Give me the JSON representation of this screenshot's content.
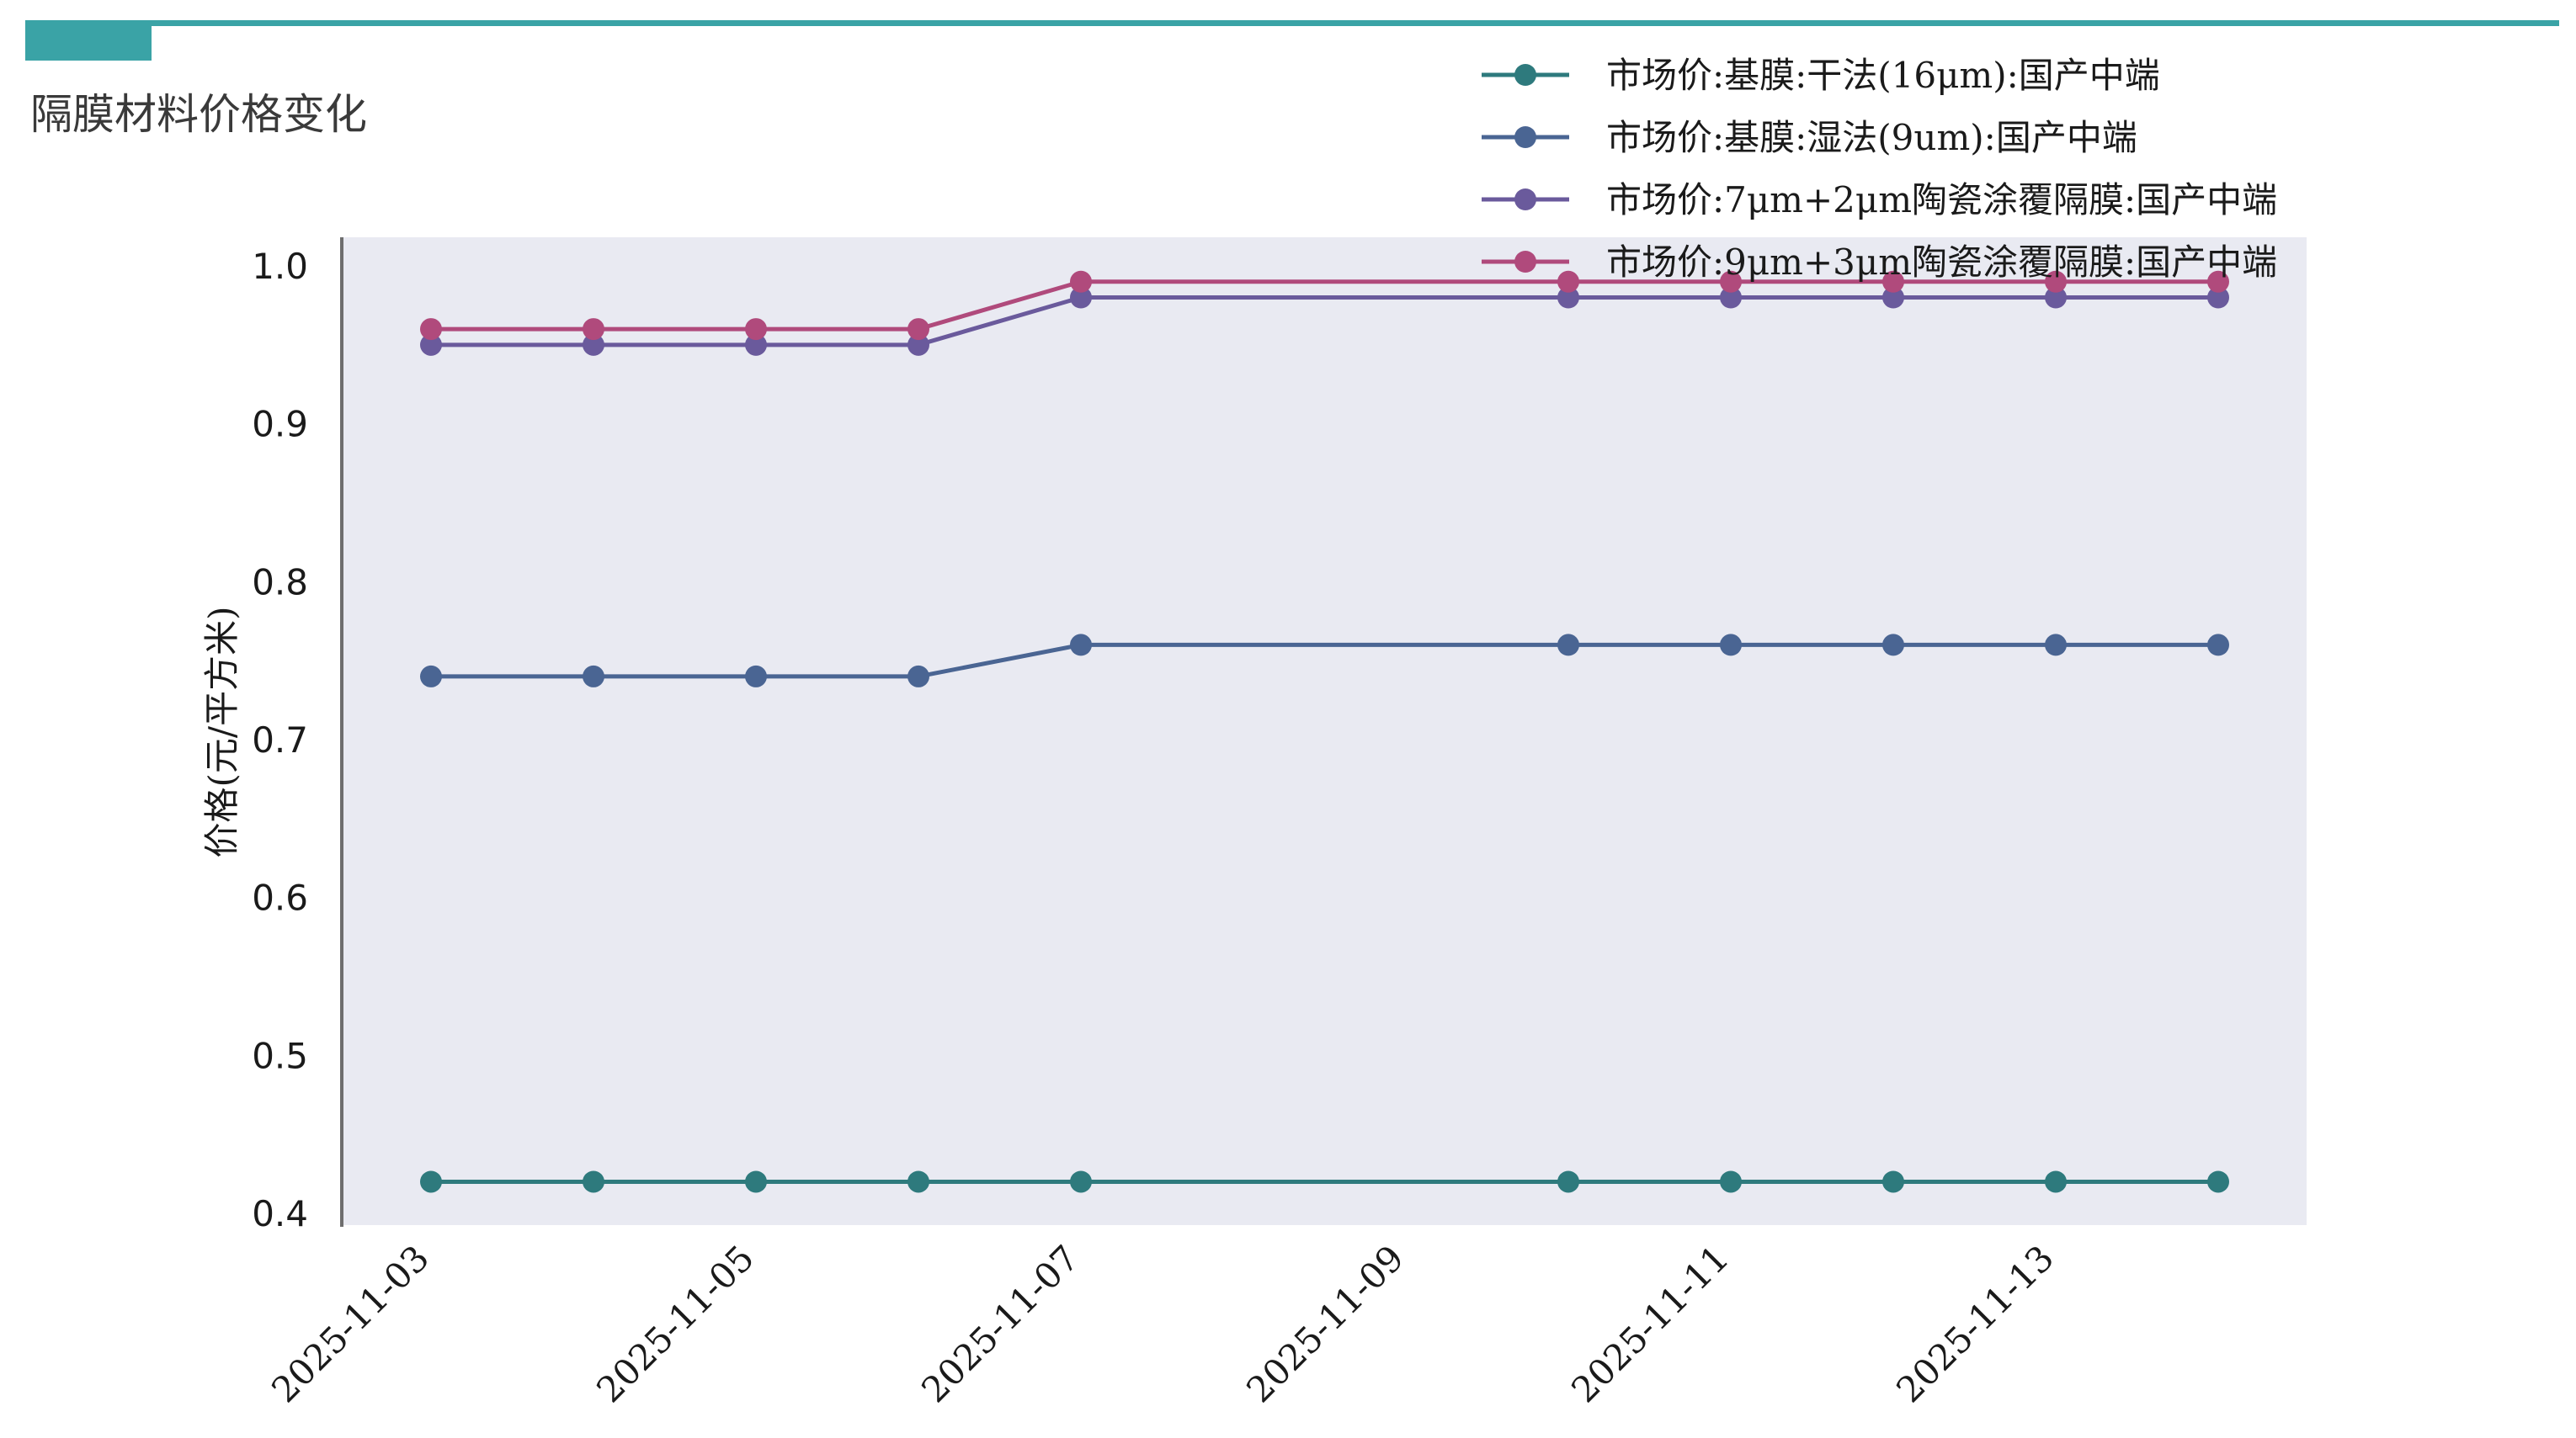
{
  "page_title": "隔膜材料价格变化",
  "colors": {
    "header_bar": "#3aa3a6",
    "header_tab": "#3aa3a6",
    "plot_bg": "#e9eaf2",
    "axis": "#6e6e6e"
  },
  "chart_data": {
    "type": "line",
    "title": "隔膜材料价格变化",
    "xlabel": "",
    "ylabel": "价格(元/平方米)",
    "ylim": [
      0.4,
      1.0
    ],
    "yticks": [
      0.4,
      0.5,
      0.6,
      0.7,
      0.8,
      0.9,
      1.0
    ],
    "ytick_labels": [
      "0.4",
      "0.5",
      "0.6",
      "0.7",
      "0.8",
      "0.9",
      "1.0"
    ],
    "xticks": [
      "2025-11-03",
      "2025-11-05",
      "2025-11-07",
      "2025-11-09",
      "2025-11-11",
      "2025-11-13"
    ],
    "x": [
      "2025-11-03",
      "2025-11-04",
      "2025-11-05",
      "2025-11-06",
      "2025-11-07",
      "2025-11-10",
      "2025-11-11",
      "2025-11-12",
      "2025-11-13",
      "2025-11-14"
    ],
    "grid": false,
    "legend_position": "top-right",
    "series": [
      {
        "name": "市场价:基膜:干法(16μm):国产中端",
        "color": "#2e7a7d",
        "values": [
          0.42,
          0.42,
          0.42,
          0.42,
          0.42,
          0.42,
          0.42,
          0.42,
          0.42,
          0.42
        ]
      },
      {
        "name": "市场价:基膜:湿法(9um):国产中端",
        "color": "#4a6593",
        "values": [
          0.74,
          0.74,
          0.74,
          0.74,
          0.76,
          0.76,
          0.76,
          0.76,
          0.76,
          0.76
        ]
      },
      {
        "name": "市场价:7μm+2μm陶瓷涂覆隔膜:国产中端",
        "color": "#6a5a9c",
        "values": [
          0.95,
          0.95,
          0.95,
          0.95,
          0.98,
          0.98,
          0.98,
          0.98,
          0.98,
          0.98
        ]
      },
      {
        "name": "市场价:9μm+3μm陶瓷涂覆隔膜:国产中端",
        "color": "#b04a7c",
        "values": [
          0.96,
          0.96,
          0.96,
          0.96,
          0.99,
          0.99,
          0.99,
          0.99,
          0.99,
          0.99
        ]
      }
    ]
  }
}
